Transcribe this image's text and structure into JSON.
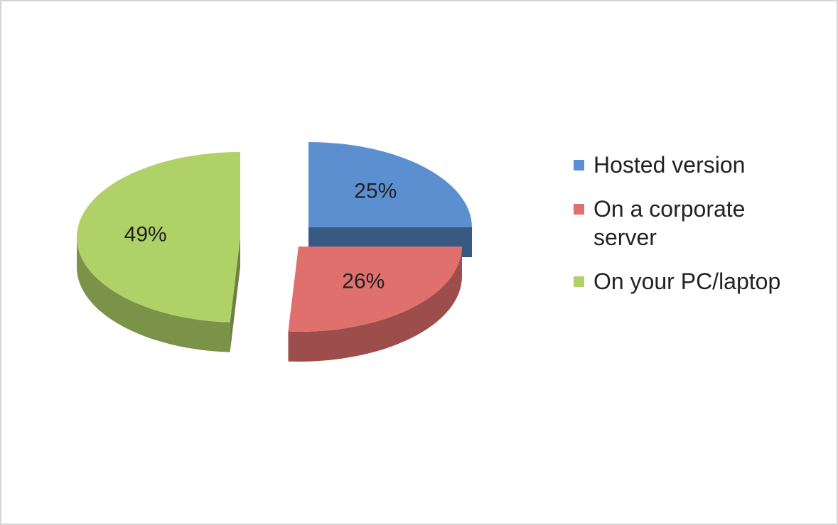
{
  "chart_data": {
    "type": "pie",
    "categories": [
      "Hosted version",
      "On a corporate server",
      "On your PC/laptop"
    ],
    "values": [
      25,
      26,
      49
    ],
    "value_labels": [
      "25%",
      "26%",
      "49%"
    ],
    "colors": [
      "#5b8fd0",
      "#e0706d",
      "#b0d168"
    ],
    "legend": "right"
  }
}
